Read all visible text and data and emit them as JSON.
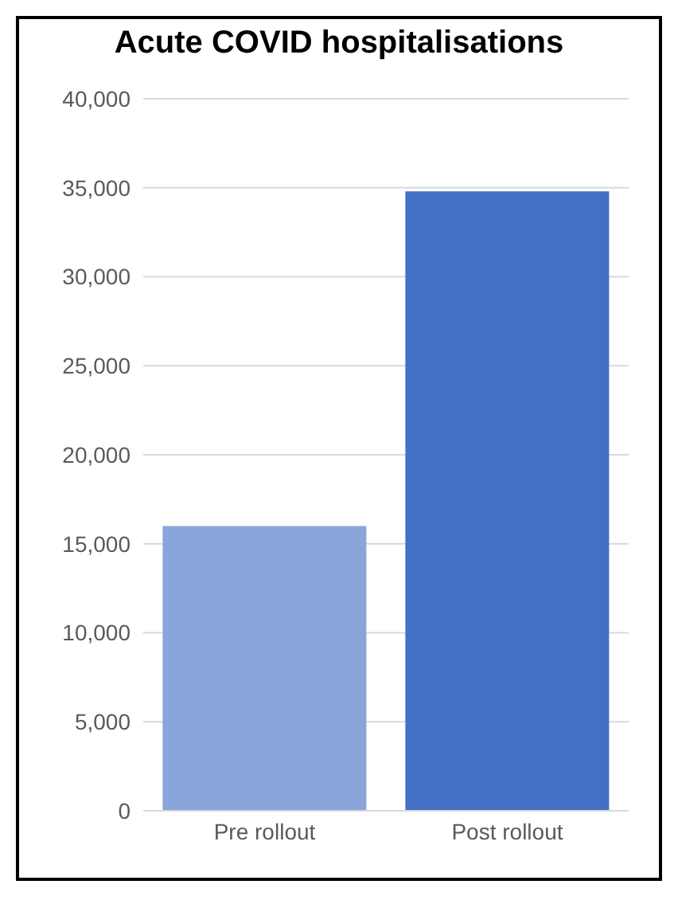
{
  "chart_data": {
    "type": "bar",
    "title": "Acute COVID hospitalisations",
    "categories": [
      "Pre rollout",
      "Post rollout"
    ],
    "values": [
      16000,
      34800
    ],
    "colors": [
      "#8aa5da",
      "#4470c4"
    ],
    "ylim": [
      0,
      40000
    ],
    "yticks": [
      0,
      {
        "value": 5000,
        "label": "5,000"
      },
      {
        "value": 10000,
        "label": "10,000"
      },
      {
        "value": 15000,
        "label": "15,000"
      },
      {
        "value": 20000,
        "label": "20,000"
      },
      {
        "value": 25000,
        "label": "25,000"
      },
      {
        "value": 30000,
        "label": "30,000"
      },
      {
        "value": 35000,
        "label": "35,000"
      },
      {
        "value": 40000,
        "label": "40,000"
      }
    ],
    "grid": "y"
  }
}
